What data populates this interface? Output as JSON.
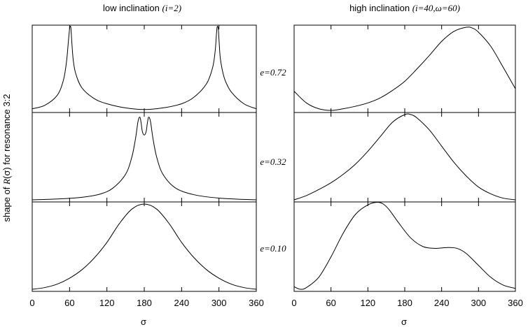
{
  "title_left": {
    "prefix": "low inclination ",
    "params": "(i=2)"
  },
  "title_right": {
    "prefix": "high inclination ",
    "params": "(i=40,ω=60)"
  },
  "ylabel": {
    "prefix": "shape of ",
    "func": "R",
    "arg": "(σ)",
    "suffix": " for resonance 3:2"
  },
  "row_labels": [
    "e=0.72",
    "e=0.32",
    "e=0.10"
  ],
  "xlabel": "σ",
  "xticks": [
    0,
    60,
    120,
    180,
    240,
    300,
    360
  ],
  "chart_data": [
    {
      "type": "line",
      "column": "low inclination (i=2)",
      "row": "e=0.72",
      "xlim": [
        0,
        360
      ],
      "ylim": [
        0,
        1
      ],
      "x": [
        0,
        20,
        40,
        50,
        55,
        58,
        60,
        61,
        62,
        63,
        64,
        66,
        70,
        80,
        100,
        120,
        150,
        180,
        210,
        240,
        260,
        280,
        290,
        294,
        296,
        297,
        298,
        299,
        300,
        302,
        305,
        310,
        320,
        340,
        360
      ],
      "y": [
        0.02,
        0.06,
        0.18,
        0.36,
        0.58,
        0.82,
        0.98,
        1.01,
        1.0,
        0.9,
        0.78,
        0.6,
        0.44,
        0.27,
        0.14,
        0.08,
        0.03,
        0.01,
        0.03,
        0.08,
        0.16,
        0.32,
        0.52,
        0.72,
        0.92,
        1.0,
        1.01,
        0.98,
        0.86,
        0.64,
        0.5,
        0.36,
        0.22,
        0.08,
        0.02
      ]
    },
    {
      "type": "line",
      "column": "low inclination (i=2)",
      "row": "e=0.32",
      "xlim": [
        0,
        360
      ],
      "ylim": [
        0,
        1
      ],
      "x": [
        0,
        40,
        80,
        110,
        130,
        150,
        160,
        166,
        170,
        173,
        175,
        177,
        180,
        183,
        185,
        187,
        190,
        194,
        200,
        210,
        230,
        260,
        300,
        340,
        360
      ],
      "y": [
        0.0,
        0.01,
        0.03,
        0.07,
        0.14,
        0.3,
        0.5,
        0.72,
        0.92,
        0.97,
        0.9,
        0.8,
        0.76,
        0.8,
        0.9,
        0.97,
        0.92,
        0.72,
        0.5,
        0.3,
        0.14,
        0.06,
        0.02,
        0.005,
        0.0
      ]
    },
    {
      "type": "line",
      "column": "low inclination (i=2)",
      "row": "e=0.10",
      "xlim": [
        0,
        360
      ],
      "ylim": [
        0,
        1
      ],
      "x": [
        0,
        20,
        40,
        60,
        80,
        100,
        120,
        140,
        160,
        180,
        200,
        220,
        240,
        260,
        280,
        300,
        320,
        340,
        360
      ],
      "y": [
        0.0,
        0.02,
        0.06,
        0.13,
        0.23,
        0.37,
        0.55,
        0.77,
        0.94,
        1.0,
        0.94,
        0.77,
        0.55,
        0.37,
        0.23,
        0.13,
        0.06,
        0.02,
        0.0
      ]
    },
    {
      "type": "line",
      "column": "high inclination (i=40,ω=60)",
      "row": "e=0.72",
      "xlim": [
        0,
        360
      ],
      "ylim": [
        0,
        1
      ],
      "x": [
        0,
        20,
        40,
        60,
        80,
        100,
        120,
        140,
        160,
        180,
        200,
        220,
        240,
        260,
        280,
        290,
        300,
        320,
        340,
        360
      ],
      "y": [
        0.23,
        0.09,
        0.02,
        0.0,
        0.02,
        0.05,
        0.09,
        0.15,
        0.24,
        0.35,
        0.5,
        0.66,
        0.83,
        0.95,
        1.0,
        0.99,
        0.94,
        0.77,
        0.52,
        0.26
      ]
    },
    {
      "type": "line",
      "column": "high inclination (i=40,ω=60)",
      "row": "e=0.32",
      "xlim": [
        0,
        360
      ],
      "ylim": [
        0,
        1
      ],
      "x": [
        0,
        20,
        40,
        60,
        80,
        100,
        120,
        140,
        160,
        180,
        190,
        200,
        220,
        240,
        260,
        280,
        300,
        320,
        340,
        360
      ],
      "y": [
        0.0,
        0.05,
        0.12,
        0.2,
        0.3,
        0.42,
        0.57,
        0.74,
        0.91,
        1.0,
        1.0,
        0.96,
        0.82,
        0.63,
        0.44,
        0.28,
        0.15,
        0.07,
        0.02,
        0.0
      ]
    },
    {
      "type": "line",
      "column": "high inclination (i=40,ω=60)",
      "row": "e=0.10",
      "xlim": [
        0,
        360
      ],
      "ylim": [
        0,
        1
      ],
      "x": [
        0,
        10,
        20,
        40,
        60,
        80,
        100,
        120,
        135,
        145,
        155,
        170,
        190,
        210,
        230,
        250,
        265,
        280,
        300,
        320,
        340,
        360
      ],
      "y": [
        0.03,
        0.0,
        0.02,
        0.14,
        0.38,
        0.66,
        0.88,
        0.99,
        1.02,
        1.0,
        0.93,
        0.78,
        0.6,
        0.5,
        0.48,
        0.49,
        0.48,
        0.42,
        0.28,
        0.14,
        0.05,
        0.01
      ]
    }
  ]
}
